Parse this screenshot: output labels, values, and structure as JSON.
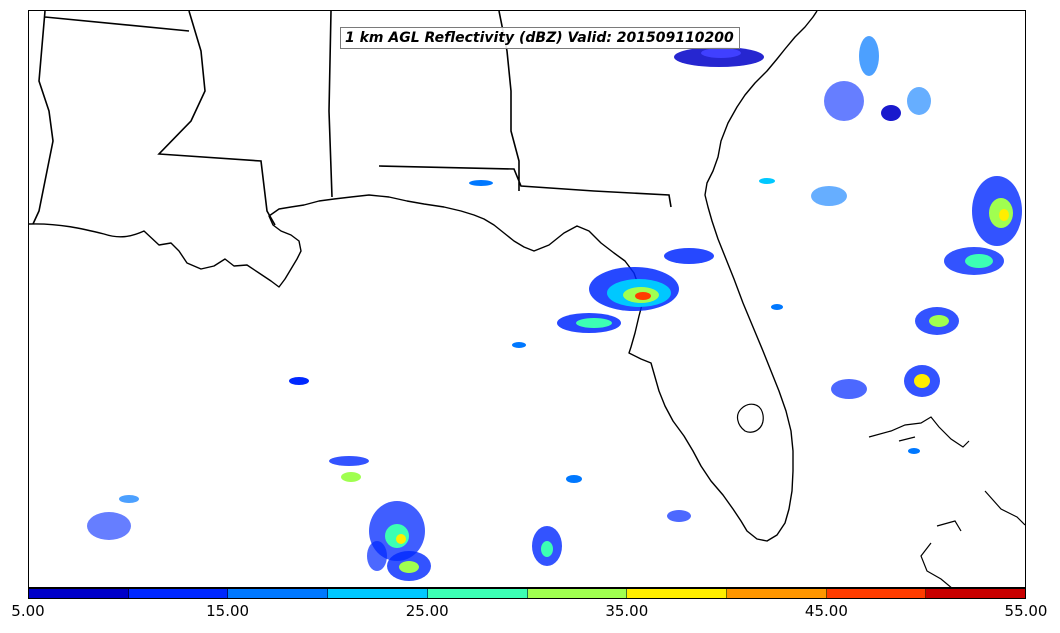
{
  "title": "1 km AGL Reflectivity (dBZ) Valid: 201509110200",
  "colorbar": {
    "colors": [
      "#0000c8",
      "#0028ff",
      "#0078ff",
      "#00c8ff",
      "#3cffb4",
      "#a0ff50",
      "#ffee00",
      "#ff9600",
      "#ff3c00",
      "#c80000"
    ],
    "ticks": [
      "5.00",
      "15.00",
      "25.00",
      "35.00",
      "45.00",
      "55.00"
    ],
    "min": 5,
    "max": 55,
    "unit": "dBZ"
  },
  "map": {
    "variable": "1 km AGL Reflectivity",
    "valid_time": "201509110200",
    "region": "Gulf of Mexico / Florida / southeastern US"
  }
}
